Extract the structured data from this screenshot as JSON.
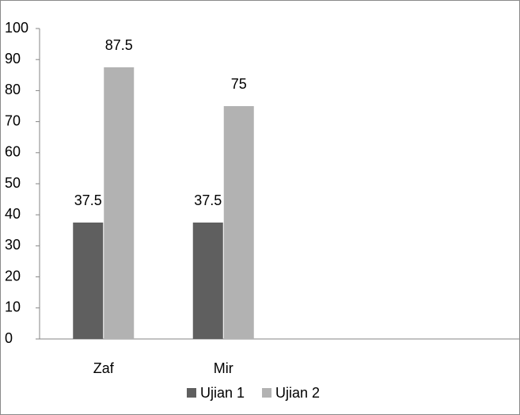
{
  "chart_data": {
    "type": "bar",
    "categories": [
      "Zaf",
      "Mir",
      null,
      null
    ],
    "series": [
      {
        "name": "Ujian 1",
        "color": "#5f5f5f",
        "values": [
          37.5,
          37.5,
          null,
          null
        ]
      },
      {
        "name": "Ujian 2",
        "color": "#b2b2b2",
        "values": [
          87.5,
          75,
          null,
          null
        ]
      }
    ],
    "ylim": [
      0,
      100
    ],
    "yticks": [
      0,
      10,
      20,
      30,
      40,
      50,
      60,
      70,
      80,
      90,
      100
    ],
    "grid": false,
    "legend": "bottom"
  }
}
